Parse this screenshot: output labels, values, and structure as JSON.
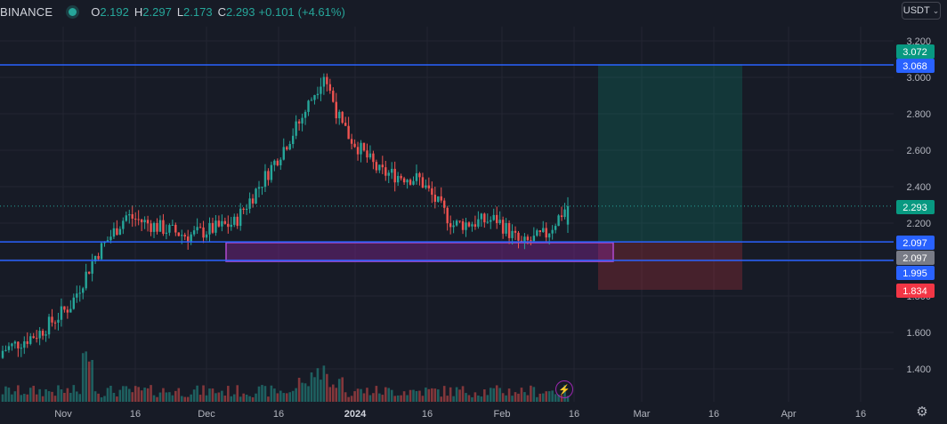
{
  "header": {
    "symbol": "BINANCE",
    "open_label": "O",
    "open_value": "2.192",
    "high_label": "H",
    "high_value": "2.297",
    "low_label": "L",
    "low_value": "2.173",
    "close_label": "C",
    "close_value": "2.293",
    "change": "+0.101",
    "change_pct": "(+4.61%)"
  },
  "unit_selector": {
    "label": "USDT"
  },
  "colors": {
    "up": "#26a69a",
    "down": "#ef5350",
    "line": "#2962ff",
    "zone": "#9c27b0",
    "bg": "#171b26"
  },
  "chart_data": {
    "type": "candlestick",
    "y_ticks": [
      "1.400",
      "1.600",
      "1.800",
      "2.000",
      "2.200",
      "2.400",
      "2.600",
      "2.800",
      "3.000",
      "3.200"
    ],
    "x_ticks": [
      "Nov",
      "16",
      "Dec",
      "16",
      "2024",
      "16",
      "Feb",
      "16",
      "Mar",
      "16",
      "Apr",
      "16"
    ],
    "horizontal_lines": [
      3.068,
      2.097,
      1.995
    ],
    "price_labels": [
      {
        "text": "3.072",
        "value": 3.072,
        "color": "#089981"
      },
      {
        "text": "3.068",
        "value": 3.068,
        "color": "#2962ff"
      },
      {
        "text": "2.293",
        "value": 2.293,
        "color": "#089981"
      },
      {
        "text": "2.097",
        "value": 2.097,
        "color": "#2962ff"
      },
      {
        "text": "2.097",
        "value": 2.097,
        "color": "#787b86"
      },
      {
        "text": "1.995",
        "value": 1.995,
        "color": "#2962ff"
      },
      {
        "text": "1.834",
        "value": 1.834,
        "color": "#f23645"
      }
    ],
    "position_tool": {
      "entry": 2.097,
      "target": 3.072,
      "stop": 1.834
    },
    "demand_zone": {
      "top": 2.093,
      "bottom": 1.99
    },
    "last_close": 2.293
  }
}
